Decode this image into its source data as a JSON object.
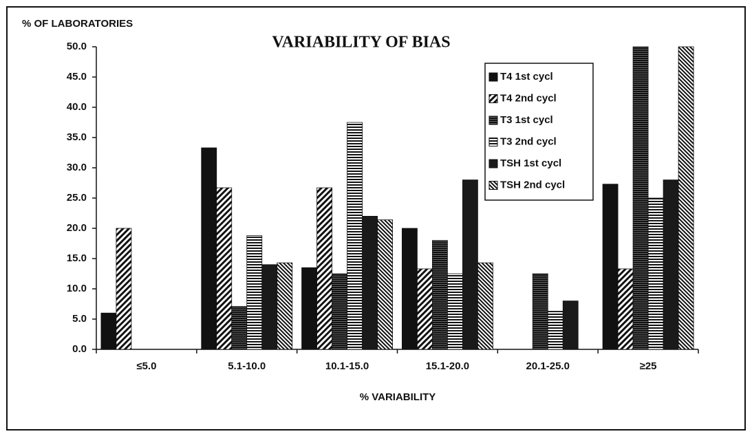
{
  "chart_data": {
    "type": "bar",
    "title": "VARIABILITY OF BIAS",
    "y_label": "% OF LABORATORIES",
    "x_label": "% VARIABILITY",
    "categories": [
      "≤5.0",
      "5.1-10.0",
      "10.1-15.0",
      "15.1-20.0",
      "20.1-25.0",
      "≥25"
    ],
    "series": [
      {
        "name": "T4 1st cycl",
        "color": "#111111",
        "pattern": "solid",
        "values": [
          6.0,
          33.3,
          13.5,
          20.0,
          0,
          27.3
        ]
      },
      {
        "name": "T4 2nd cycl",
        "color": "#111111",
        "pattern": "diagonal",
        "values": [
          20.0,
          26.7,
          26.7,
          13.3,
          0,
          13.3
        ]
      },
      {
        "name": "T3 1st cycl",
        "color": "#111111",
        "pattern": "dense-horizontal",
        "values": [
          0,
          7.1,
          12.5,
          18.0,
          12.5,
          50.0
        ]
      },
      {
        "name": "T3 2nd cycl",
        "color": "#111111",
        "pattern": "horizontal",
        "values": [
          0,
          18.8,
          37.5,
          12.5,
          6.3,
          25.0
        ]
      },
      {
        "name": "TSH 1st cycl",
        "color": "#1a1a1a",
        "pattern": "solid",
        "values": [
          0,
          14.0,
          22.0,
          28.0,
          8.0,
          28.0
        ]
      },
      {
        "name": "TSH 2nd cycl",
        "color": "#111111",
        "pattern": "diagonal-dense",
        "values": [
          0,
          14.3,
          21.4,
          14.3,
          0,
          50.0
        ]
      }
    ],
    "ylim": [
      0,
      50
    ],
    "yticks": [
      {
        "value": 0,
        "label": "0.0"
      },
      {
        "value": 5,
        "label": "5.0"
      },
      {
        "value": 10,
        "label": "10.0"
      },
      {
        "value": 15,
        "label": "15.0"
      },
      {
        "value": 20,
        "label": "20.0"
      },
      {
        "value": 25,
        "label": "25.0"
      },
      {
        "value": 30,
        "label": "30.0"
      },
      {
        "value": 35,
        "label": "35.0"
      },
      {
        "value": 40,
        "label": "40.0"
      },
      {
        "value": 45,
        "label": "45.0"
      },
      {
        "value": 50,
        "label": "50.0"
      }
    ],
    "legend": "upper right"
  }
}
